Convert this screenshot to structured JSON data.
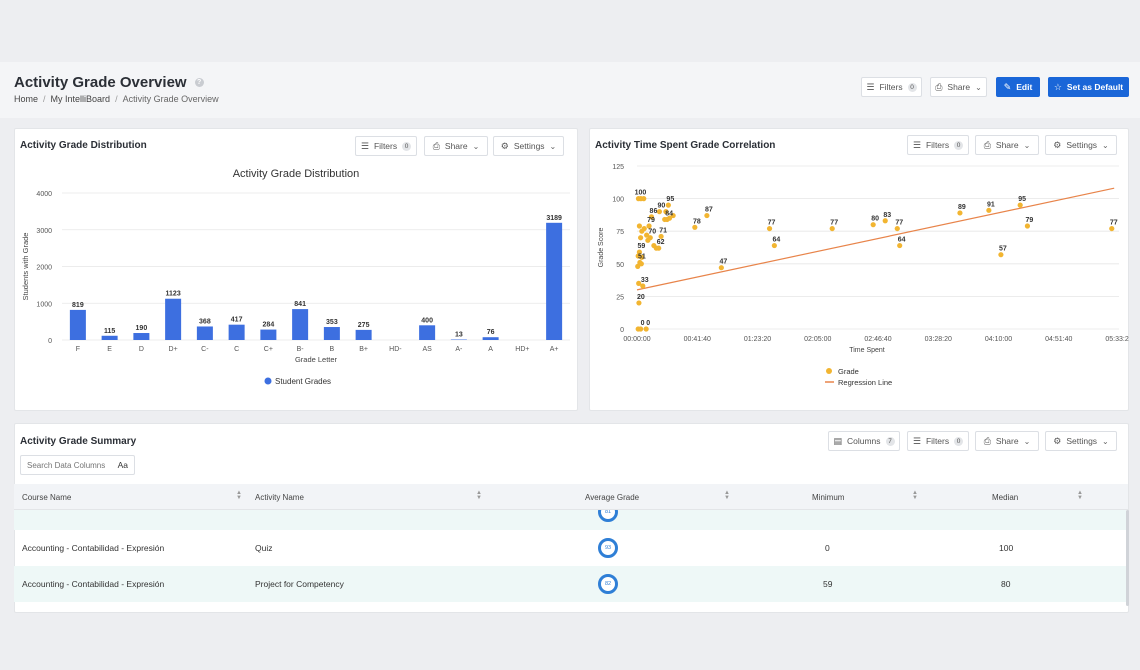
{
  "page": {
    "title": "Activity Grade Overview",
    "help_icon": "?",
    "breadcrumb": [
      "Home",
      "My IntelliBoard",
      "Activity Grade Overview"
    ],
    "breadcrumb_sep": "/",
    "buttons": {
      "filters": "Filters",
      "filters_count": "0",
      "share": "Share",
      "edit": "Edit",
      "set_default": "Set as Default"
    }
  },
  "toolbar": {
    "filters": "Filters",
    "filters_count": "0",
    "share": "Share",
    "settings": "Settings",
    "columns": "Columns",
    "columns_count": "7"
  },
  "dist_card": {
    "title": "Activity Grade Distribution",
    "chart_data": {
      "type": "bar",
      "title": "Activity Grade Distribution",
      "xlabel": "Grade Letter",
      "ylabel": "Students with Grade",
      "ylim": [
        0,
        4000
      ],
      "yticks": [
        0,
        1000,
        2000,
        3000,
        4000
      ],
      "categories": [
        "F",
        "E",
        "D",
        "D+",
        "C-",
        "C",
        "C+",
        "B-",
        "B",
        "B+",
        "HD-",
        "AS",
        "A-",
        "A",
        "HD+",
        "A+"
      ],
      "values": [
        819,
        115,
        190,
        1123,
        368,
        417,
        284,
        841,
        353,
        275,
        null,
        400,
        13,
        76,
        null,
        3189
      ],
      "series_name": "Student Grades",
      "color": "#3d6fe0",
      "legend": "bottom"
    }
  },
  "corr_card": {
    "title": "Activity Time Spent Grade Correlation",
    "chart_data": {
      "type": "scatter",
      "xlabel": "Time Spent",
      "ylabel": "Grade Score",
      "xlim": [
        0,
        20000
      ],
      "ylim": [
        0,
        125
      ],
      "yticks": [
        0,
        25,
        50,
        75,
        100,
        125
      ],
      "xticks": [
        "00:00:00",
        "00:41:40",
        "01:23:20",
        "02:05:00",
        "02:46:40",
        "03:28:20",
        "04:10:00",
        "04:51:40",
        "05:33:20"
      ],
      "point_color": "#f2b531",
      "line_color": "#e8844a",
      "legend": [
        "Grade",
        "Regression Line"
      ],
      "regression": {
        "x": [
          0,
          19800
        ],
        "y": [
          30,
          108
        ]
      },
      "points": [
        {
          "x": 60,
          "y": 100,
          "label": "100"
        },
        {
          "x": 160,
          "y": 100
        },
        {
          "x": 280,
          "y": 100
        },
        {
          "x": 1300,
          "y": 95,
          "label": "95"
        },
        {
          "x": 1200,
          "y": 90
        },
        {
          "x": 930,
          "y": 90,
          "label": "90"
        },
        {
          "x": 600,
          "y": 86,
          "label": "86"
        },
        {
          "x": 1500,
          "y": 87
        },
        {
          "x": 1250,
          "y": 84,
          "label": "84"
        },
        {
          "x": 1350,
          "y": 85
        },
        {
          "x": 1150,
          "y": 84
        },
        {
          "x": 2900,
          "y": 87,
          "label": "87"
        },
        {
          "x": 100,
          "y": 79
        },
        {
          "x": 300,
          "y": 77
        },
        {
          "x": 500,
          "y": 79,
          "label": "79"
        },
        {
          "x": 200,
          "y": 75
        },
        {
          "x": 400,
          "y": 72
        },
        {
          "x": 550,
          "y": 70,
          "label": "70"
        },
        {
          "x": 150,
          "y": 70
        },
        {
          "x": 450,
          "y": 68
        },
        {
          "x": 1000,
          "y": 71,
          "label": "71"
        },
        {
          "x": 2400,
          "y": 78,
          "label": "78"
        },
        {
          "x": 900,
          "y": 62,
          "label": "62"
        },
        {
          "x": 700,
          "y": 64
        },
        {
          "x": 800,
          "y": 62
        },
        {
          "x": 100,
          "y": 59,
          "label": "59"
        },
        {
          "x": 50,
          "y": 56
        },
        {
          "x": 200,
          "y": 55
        },
        {
          "x": 120,
          "y": 51,
          "label": "51"
        },
        {
          "x": 30,
          "y": 48
        },
        {
          "x": 180,
          "y": 50
        },
        {
          "x": 70,
          "y": 35
        },
        {
          "x": 240,
          "y": 33,
          "label": "33"
        },
        {
          "x": 80,
          "y": 20,
          "label": "20"
        },
        {
          "x": 50,
          "y": 0
        },
        {
          "x": 150,
          "y": 0,
          "label": "0"
        },
        {
          "x": 380,
          "y": 0,
          "label": "0"
        },
        {
          "x": 3500,
          "y": 47,
          "label": "47"
        },
        {
          "x": 5500,
          "y": 77,
          "label": "77"
        },
        {
          "x": 5700,
          "y": 64,
          "label": "64"
        },
        {
          "x": 8100,
          "y": 77,
          "label": "77"
        },
        {
          "x": 9800,
          "y": 80,
          "label": "80"
        },
        {
          "x": 10300,
          "y": 83,
          "label": "83"
        },
        {
          "x": 10800,
          "y": 77,
          "label": "77"
        },
        {
          "x": 10900,
          "y": 64,
          "label": "64"
        },
        {
          "x": 13400,
          "y": 89,
          "label": "89"
        },
        {
          "x": 14600,
          "y": 91,
          "label": "91"
        },
        {
          "x": 15100,
          "y": 57,
          "label": "57"
        },
        {
          "x": 15900,
          "y": 95,
          "label": "95"
        },
        {
          "x": 16200,
          "y": 79,
          "label": "79"
        },
        {
          "x": 19700,
          "y": 77,
          "label": "77"
        }
      ]
    }
  },
  "summary": {
    "title": "Activity Grade Summary",
    "search_placeholder": "Search Data Columns",
    "search_case": "Aa",
    "columns": [
      "Course Name",
      "Activity Name",
      "Average Grade",
      "Minimum",
      "Median"
    ],
    "partial_row": {
      "avg": "81"
    },
    "rows": [
      {
        "course": "Accounting - Contabilidad - Expresión",
        "activity": "Quiz",
        "avg": "93",
        "min": "0",
        "median": "100"
      },
      {
        "course": "Accounting - Contabilidad - Expresión",
        "activity": "Project for Competency",
        "avg": "82",
        "min": "59",
        "median": "80"
      }
    ]
  }
}
